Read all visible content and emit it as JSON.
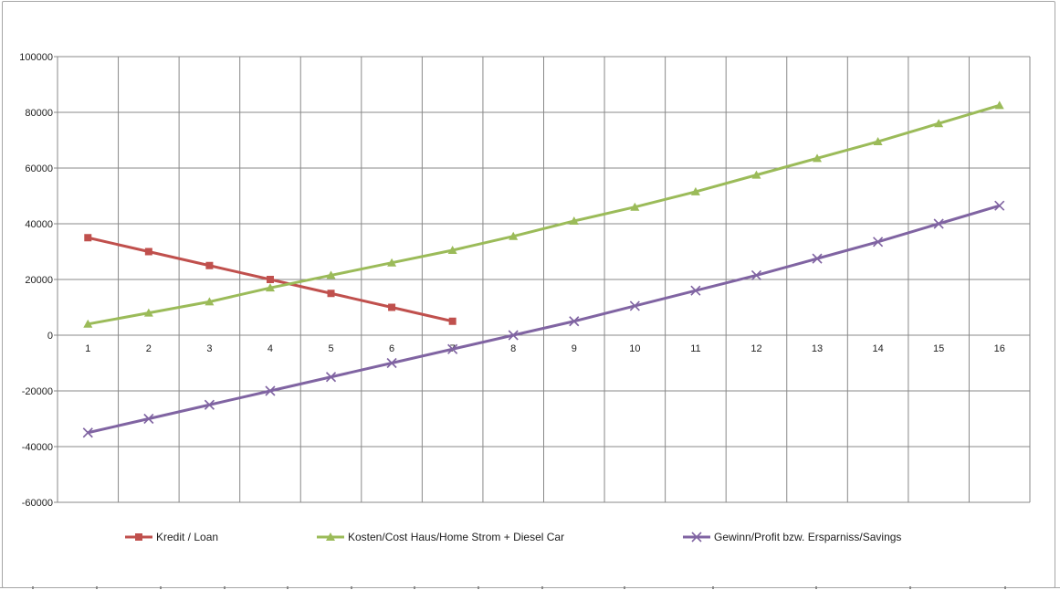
{
  "chart_data": {
    "type": "line",
    "title": "",
    "categories": [
      "1",
      "2",
      "3",
      "4",
      "5",
      "6",
      "7",
      "8",
      "9",
      "10",
      "11",
      "12",
      "13",
      "14",
      "15",
      "16"
    ],
    "series": [
      {
        "name": "Kredit / Loan",
        "color": "#C0504D",
        "marker": "square",
        "values": [
          35000,
          30000,
          25000,
          20000,
          15000,
          10000,
          5000,
          null,
          null,
          null,
          null,
          null,
          null,
          null,
          null,
          null
        ]
      },
      {
        "name": "Kosten/Cost Haus/Home Strom + Diesel Car",
        "color": "#9BBB59",
        "marker": "triangle",
        "values": [
          4000,
          8000,
          12000,
          17000,
          21500,
          26000,
          30500,
          35500,
          41000,
          46000,
          51500,
          57500,
          63500,
          69500,
          76000,
          82500
        ]
      },
      {
        "name": "Gewinn/Profit bzw. Ersparniss/Savings",
        "color": "#8064A2",
        "marker": "x",
        "values": [
          -35000,
          -30000,
          -25000,
          -20000,
          -15000,
          -10000,
          -5000,
          0,
          5000,
          10500,
          16000,
          21500,
          27500,
          33500,
          40000,
          46500
        ]
      }
    ],
    "y_axis": {
      "min": -60000,
      "max": 100000,
      "step": 20000,
      "tick_labels": [
        "100000",
        "80000",
        "60000",
        "40000",
        "20000",
        "0",
        "-20000",
        "-40000",
        "-60000"
      ]
    },
    "x_axis": {
      "tick_labels": [
        "1",
        "2",
        "3",
        "4",
        "5",
        "6",
        "7",
        "8",
        "9",
        "10",
        "11",
        "12",
        "13",
        "14",
        "15",
        "16"
      ]
    },
    "grid": true,
    "legend_position": "bottom",
    "colors": {
      "gridline": "#898989",
      "chart_border": "#a6a6a6",
      "background": "#ffffff",
      "axis_text": "#222222"
    }
  }
}
